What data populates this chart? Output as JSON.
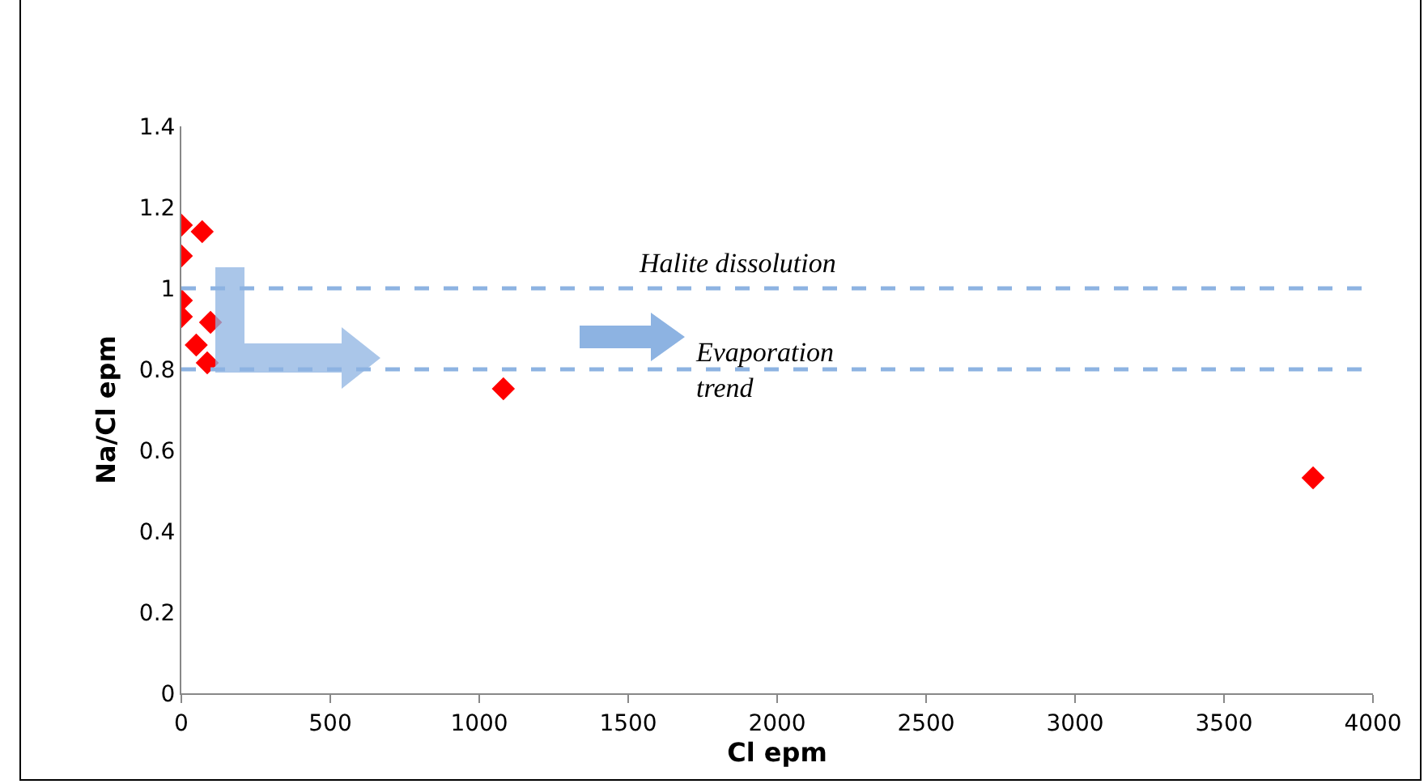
{
  "chart_data": {
    "type": "scatter",
    "xlabel": "Cl epm",
    "ylabel": "Na/Cl epm",
    "x": [
      0,
      70,
      0,
      0,
      0,
      98,
      50,
      87,
      1081,
      3799
    ],
    "values": [
      1.156,
      1.14,
      1.08,
      0.97,
      0.93,
      0.916,
      0.86,
      0.816,
      0.752,
      0.532
    ],
    "color": "#ff0000",
    "marker": "diamond",
    "xlim": [
      0,
      4000
    ],
    "xticks": [
      0,
      500,
      1000,
      1500,
      2000,
      2500,
      3000,
      3500,
      4000
    ],
    "ylim": [
      0,
      1.4
    ],
    "yticks": [
      0,
      0.2,
      0.4,
      0.6,
      0.8,
      1,
      1.2,
      1.4
    ],
    "grid": false,
    "ref_lines": [
      {
        "axis": "y",
        "value": 1,
        "color": "#8db3e2",
        "line_style": "dashed"
      },
      {
        "axis": "y",
        "value": 0.8,
        "color": "#8db3e2",
        "line_style": "dashed"
      }
    ],
    "annotations": [
      {
        "text": "Halite dissolution",
        "x": 1864,
        "y": 1
      },
      {
        "text": "Evaporation\ntrend",
        "x": 1957,
        "y": 0.8
      }
    ]
  }
}
